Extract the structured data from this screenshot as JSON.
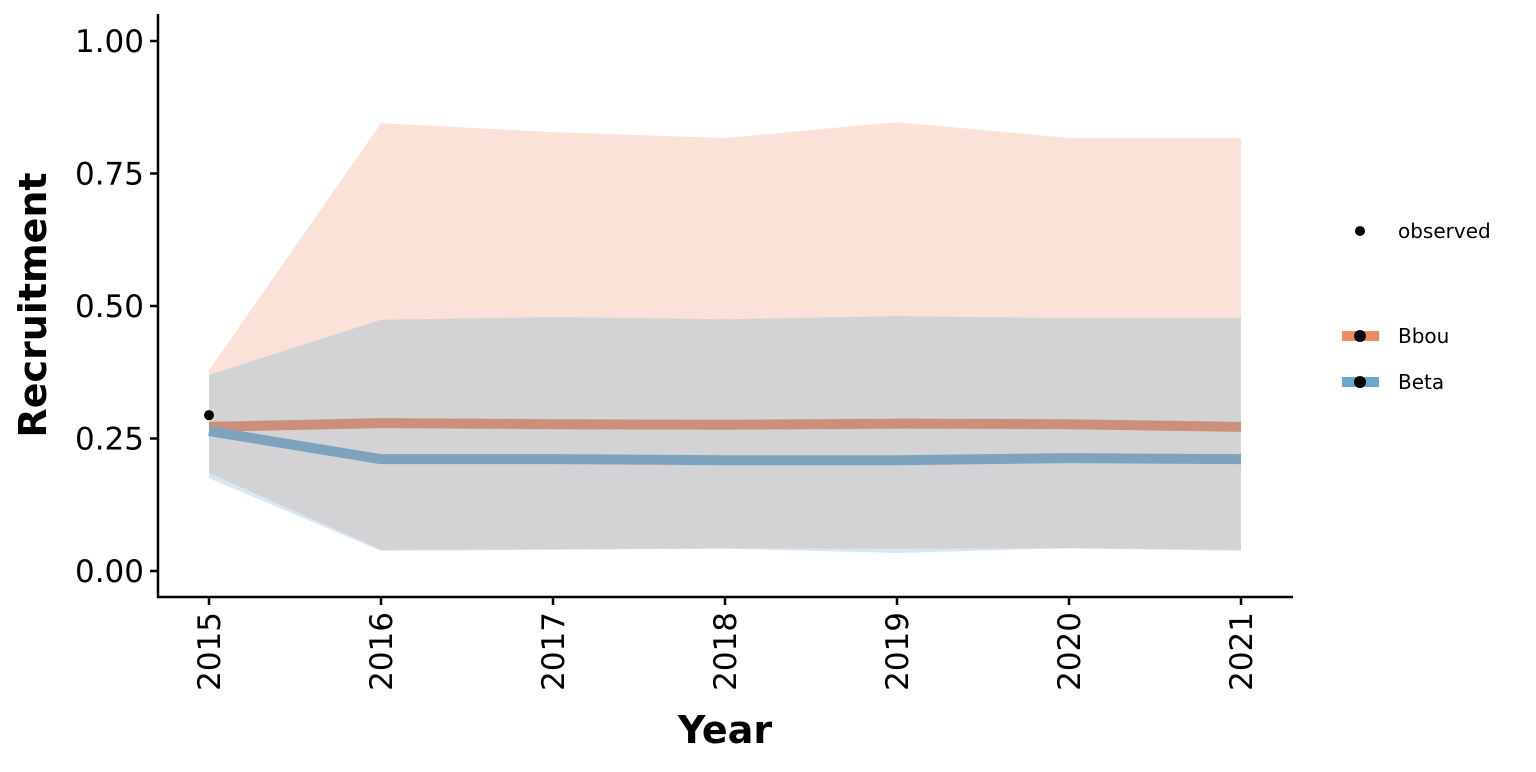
{
  "chart_data": {
    "type": "line",
    "title": "",
    "xlabel": "Year",
    "ylabel": "Recruitment",
    "x": [
      2015,
      2016,
      2017,
      2018,
      2019,
      2020,
      2021
    ],
    "xticks": [
      "2015",
      "2016",
      "2017",
      "2018",
      "2019",
      "2020",
      "2021"
    ],
    "yticks": [
      "0.00",
      "0.25",
      "0.50",
      "0.75",
      "1.00"
    ],
    "ylim": [
      -0.05,
      1.05
    ],
    "grid": false,
    "legend_placement": "right",
    "observed": {
      "name": "observed",
      "x": [
        2015
      ],
      "y": [
        0.294
      ],
      "color": "#000000"
    },
    "series": [
      {
        "name": "Bbou",
        "color": "#ef8a62",
        "line_color": "#cd8f7c",
        "values": [
          0.272,
          0.279,
          0.277,
          0.276,
          0.278,
          0.277,
          0.272
        ],
        "lower": [
          0.185,
          0.04,
          0.041,
          0.043,
          0.042,
          0.043,
          0.04
        ],
        "upper": [
          0.379,
          0.845,
          0.828,
          0.817,
          0.847,
          0.817,
          0.817
        ]
      },
      {
        "name": "Beta",
        "color": "#67a9cf",
        "line_color": "#7ea3bd",
        "values": [
          0.264,
          0.211,
          0.211,
          0.209,
          0.209,
          0.213,
          0.211
        ],
        "lower": [
          0.175,
          0.038,
          0.04,
          0.042,
          0.034,
          0.043,
          0.038
        ],
        "upper": [
          0.37,
          0.474,
          0.479,
          0.475,
          0.481,
          0.477,
          0.477
        ]
      }
    ]
  }
}
